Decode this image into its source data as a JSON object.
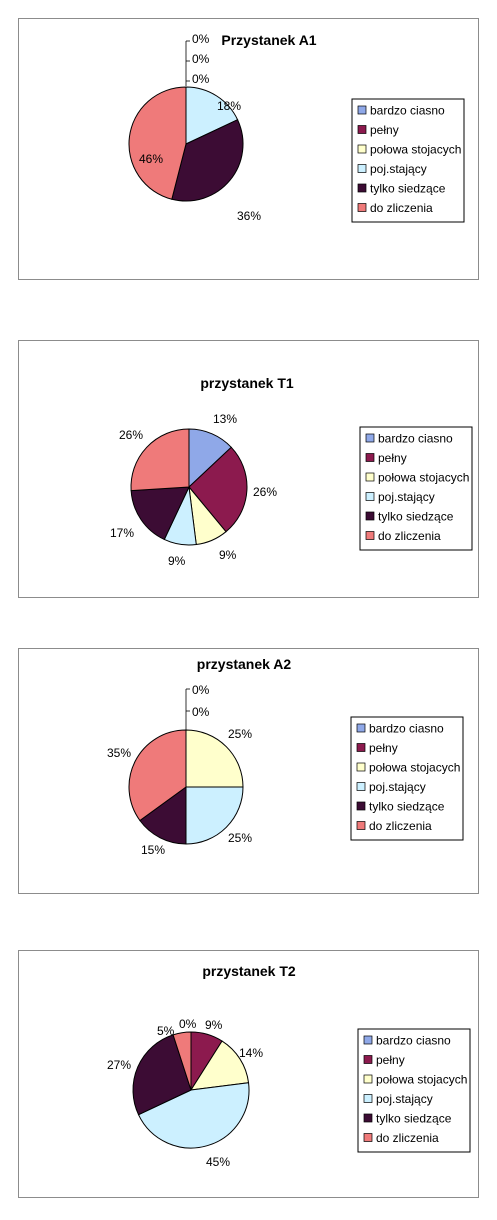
{
  "legend_colors": [
    "#8fa8e8",
    "#8c1a4e",
    "#ffffcc",
    "#ccf0ff",
    "#3c0c34",
    "#ef7a7a"
  ],
  "chart_data": [
    {
      "type": "pie",
      "title": "Przystanek A1",
      "legend": [
        "bardzo ciasno",
        "pełny",
        "połowa stojacych",
        "poj.stający",
        "tylko siedzące",
        "do zliczenia"
      ],
      "values": [
        0,
        0,
        0,
        18,
        36,
        46
      ],
      "labels": [
        "0%",
        "0%",
        "0%",
        "18%",
        "36%",
        "46%"
      ],
      "legend_position": "right"
    },
    {
      "type": "pie",
      "title": "przystanek T1",
      "legend": [
        "bardzo ciasno",
        "pełny",
        "połowa stojacych",
        "poj.stający",
        "tylko siedzące",
        "do zliczenia"
      ],
      "values": [
        13,
        26,
        9,
        9,
        17,
        26
      ],
      "labels": [
        "13%",
        "26%",
        "9%",
        "9%",
        "17%",
        "26%"
      ],
      "legend_position": "right"
    },
    {
      "type": "pie",
      "title": "przystanek A2",
      "legend": [
        "bardzo ciasno",
        "pełny",
        "połowa stojacych",
        "poj.stający",
        "tylko siedzące",
        "do zliczenia"
      ],
      "values": [
        0,
        0,
        25,
        25,
        15,
        35
      ],
      "labels": [
        "0%",
        "0%",
        "25%",
        "25%",
        "15%",
        "35%"
      ],
      "legend_position": "right"
    },
    {
      "type": "pie",
      "title": "przystanek T2",
      "legend": [
        "bardzo ciasno",
        "pełny",
        "połowa stojacych",
        "poj.stający",
        "tylko siedzące",
        "do zliczenia"
      ],
      "values": [
        0,
        9,
        14,
        45,
        27,
        5
      ],
      "labels": [
        "0%",
        "9%",
        "14%",
        "45%",
        "27%",
        "5%"
      ],
      "legend_position": "right"
    }
  ]
}
